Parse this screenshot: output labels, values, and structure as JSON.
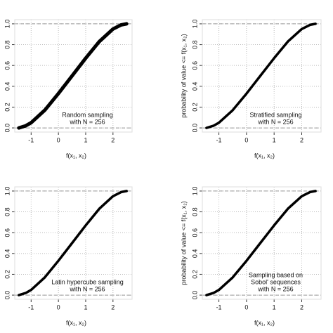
{
  "chart_data": [
    {
      "type": "line",
      "xlabel": "f(x₁, x₂)",
      "annotation": [
        "Random sampling",
        "with N = 256"
      ],
      "x": [
        -1.45,
        -1.2,
        -1,
        -0.5,
        0,
        0.5,
        1,
        1.5,
        2,
        2.3,
        2.5
      ],
      "series": [
        {
          "color": "#000000",
          "values": [
            0,
            0.02,
            0.05,
            0.17,
            0.33,
            0.5,
            0.67,
            0.83,
            0.95,
            0.99,
            1
          ]
        }
      ],
      "xlim": [
        -1.6,
        2.7
      ],
      "ylim": [
        -0.04,
        1.04
      ],
      "xticks": [
        -1,
        0,
        1,
        2
      ],
      "yticks": [
        {
          "value": 0,
          "label": "0.0"
        },
        0.2,
        0.4,
        0.6,
        0.8,
        {
          "value": 1,
          "label": "1.0"
        }
      ],
      "reference_lines": [
        0,
        1
      ],
      "grid": true
    },
    {
      "type": "line",
      "xlabel": "f(x₁, x₂)",
      "ylabel": "probability of value <= f(x₁, x₂)",
      "annotation": [
        "Stratified sampling",
        "with N = 256"
      ],
      "x": [
        -1.45,
        -1.2,
        -1,
        -0.5,
        0,
        0.5,
        1,
        1.5,
        2,
        2.3,
        2.5
      ],
      "series": [
        {
          "color": "#000000",
          "values": [
            0,
            0.02,
            0.05,
            0.17,
            0.33,
            0.5,
            0.67,
            0.83,
            0.95,
            0.99,
            1
          ]
        }
      ],
      "xlim": [
        -1.6,
        2.7
      ],
      "ylim": [
        -0.04,
        1.04
      ],
      "xticks": [
        -1,
        0,
        1,
        2
      ],
      "yticks": [
        {
          "value": 0,
          "label": "0.0"
        },
        0.2,
        0.4,
        0.6,
        0.8,
        {
          "value": 1,
          "label": "1.0"
        }
      ],
      "reference_lines": [
        0,
        1
      ],
      "grid": true
    },
    {
      "type": "line",
      "xlabel": "f(x₁, x₂)",
      "annotation": [
        "Latin hypercube sampling",
        "with N = 256"
      ],
      "x": [
        -1.45,
        -1.2,
        -1,
        -0.5,
        0,
        0.5,
        1,
        1.5,
        2,
        2.3,
        2.5
      ],
      "series": [
        {
          "color": "#000000",
          "values": [
            0,
            0.02,
            0.05,
            0.17,
            0.33,
            0.5,
            0.67,
            0.83,
            0.95,
            0.99,
            1
          ]
        }
      ],
      "xlim": [
        -1.6,
        2.7
      ],
      "ylim": [
        -0.04,
        1.04
      ],
      "xticks": [
        -1,
        0,
        1,
        2
      ],
      "yticks": [
        {
          "value": 0,
          "label": "0.0"
        },
        0.2,
        0.4,
        0.6,
        0.8,
        {
          "value": 1,
          "label": "1.0"
        }
      ],
      "reference_lines": [
        0,
        1
      ],
      "grid": true
    },
    {
      "type": "line",
      "xlabel": "f(x₁, x₂)",
      "ylabel": "probability of value <= f(x₁, x₂)",
      "annotation": [
        "Sampling based on",
        "Sobol' sequences",
        "with N = 256"
      ],
      "x": [
        -1.45,
        -1.2,
        -1,
        -0.5,
        0,
        0.5,
        1,
        1.5,
        2,
        2.3,
        2.5
      ],
      "series": [
        {
          "color": "#000000",
          "values": [
            0,
            0.02,
            0.05,
            0.17,
            0.33,
            0.5,
            0.67,
            0.83,
            0.95,
            0.99,
            1
          ]
        }
      ],
      "xlim": [
        -1.6,
        2.7
      ],
      "ylim": [
        -0.04,
        1.04
      ],
      "xticks": [
        -1,
        0,
        1,
        2
      ],
      "yticks": [
        {
          "value": 0,
          "label": "0.0"
        },
        0.2,
        0.4,
        0.6,
        0.8,
        {
          "value": 1,
          "label": "1.0"
        }
      ],
      "reference_lines": [
        0,
        1
      ],
      "grid": true
    }
  ]
}
